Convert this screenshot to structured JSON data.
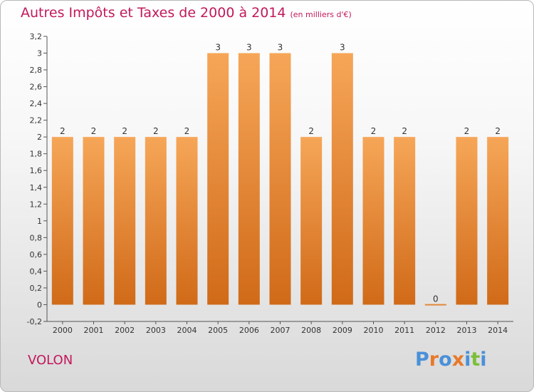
{
  "title": "Autres Impôts et Taxes de 2000 à 2014",
  "unit_label": "(en milliers d'€)",
  "commune": "VOLON",
  "logo": "Proxiti",
  "colors": {
    "title": "#c2185b",
    "bar_light": "#f6a658",
    "bar_dark": "#d06a18",
    "axis_text": "#333333"
  },
  "chart_data": {
    "type": "bar",
    "categories": [
      "2000",
      "2001",
      "2002",
      "2003",
      "2004",
      "2005",
      "2006",
      "2007",
      "2008",
      "2009",
      "2010",
      "2011",
      "2012",
      "2013",
      "2014"
    ],
    "values": [
      2,
      2,
      2,
      2,
      2,
      3,
      3,
      3,
      2,
      3,
      2,
      2,
      0,
      2,
      2
    ],
    "data_labels": [
      "2",
      "2",
      "2",
      "2",
      "2",
      "3",
      "3",
      "3",
      "2",
      "3",
      "2",
      "2",
      "0",
      "2",
      "2"
    ],
    "yticks": [
      "-0,2",
      "0",
      "0,2",
      "0,4",
      "0,6",
      "0,8",
      "1",
      "1,2",
      "1,4",
      "1,6",
      "1,8",
      "2",
      "2,2",
      "2,4",
      "2,6",
      "2,8",
      "3",
      "3,2"
    ],
    "ylim": [
      -0.2,
      3.2
    ],
    "grid": false,
    "title": "Autres Impôts et Taxes de 2000 à 2014",
    "xlabel": "",
    "ylabel": ""
  }
}
